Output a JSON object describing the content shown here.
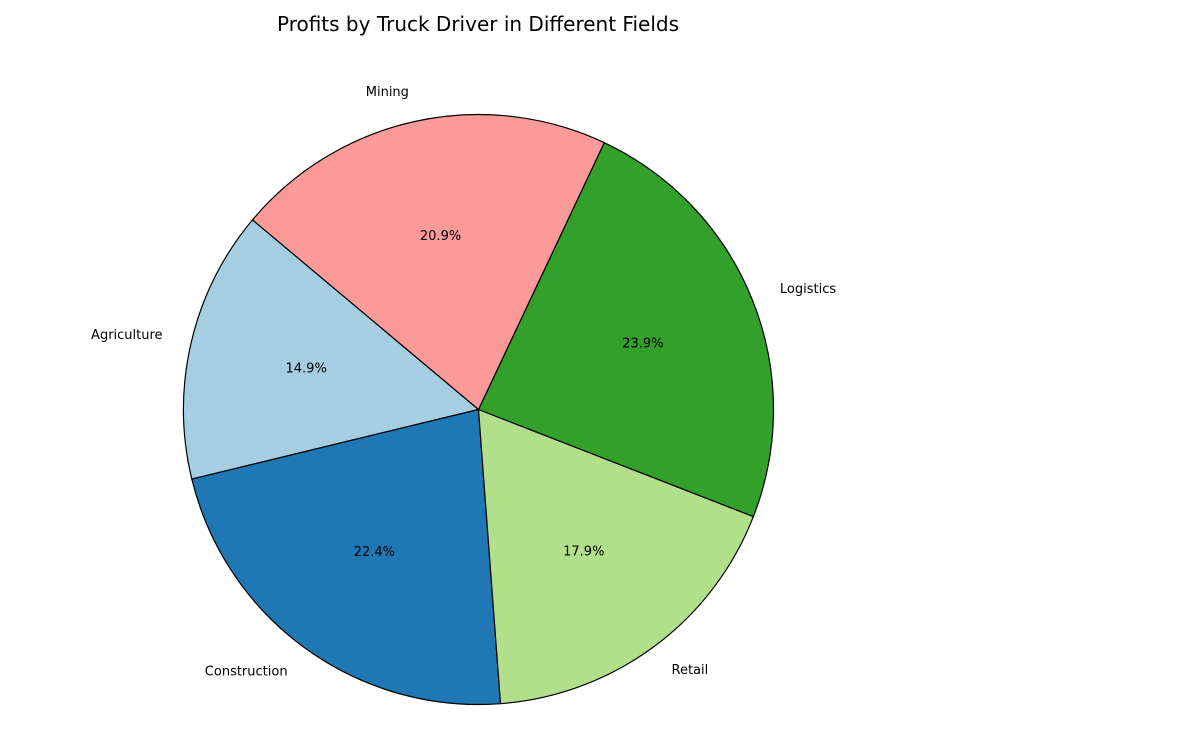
{
  "chart_data": {
    "type": "pie",
    "title": "Profits by Truck Driver in Different Fields",
    "slices": [
      {
        "label": "Agriculture",
        "percent": 14.9,
        "percent_label": "14.9%",
        "color": "#a6cee3"
      },
      {
        "label": "Construction",
        "percent": 22.4,
        "percent_label": "22.4%",
        "color": "#1f78b4"
      },
      {
        "label": "Retail",
        "percent": 17.9,
        "percent_label": "17.9%",
        "color": "#b2df8a"
      },
      {
        "label": "Logistics",
        "percent": 23.9,
        "percent_label": "23.9%",
        "color": "#33a02c"
      },
      {
        "label": "Mining",
        "percent": 20.9,
        "percent_label": "20.9%",
        "color": "#fb9a99"
      }
    ],
    "start_angle_deg": 140,
    "direction": "counterclockwise",
    "edge_color": "#000000"
  }
}
